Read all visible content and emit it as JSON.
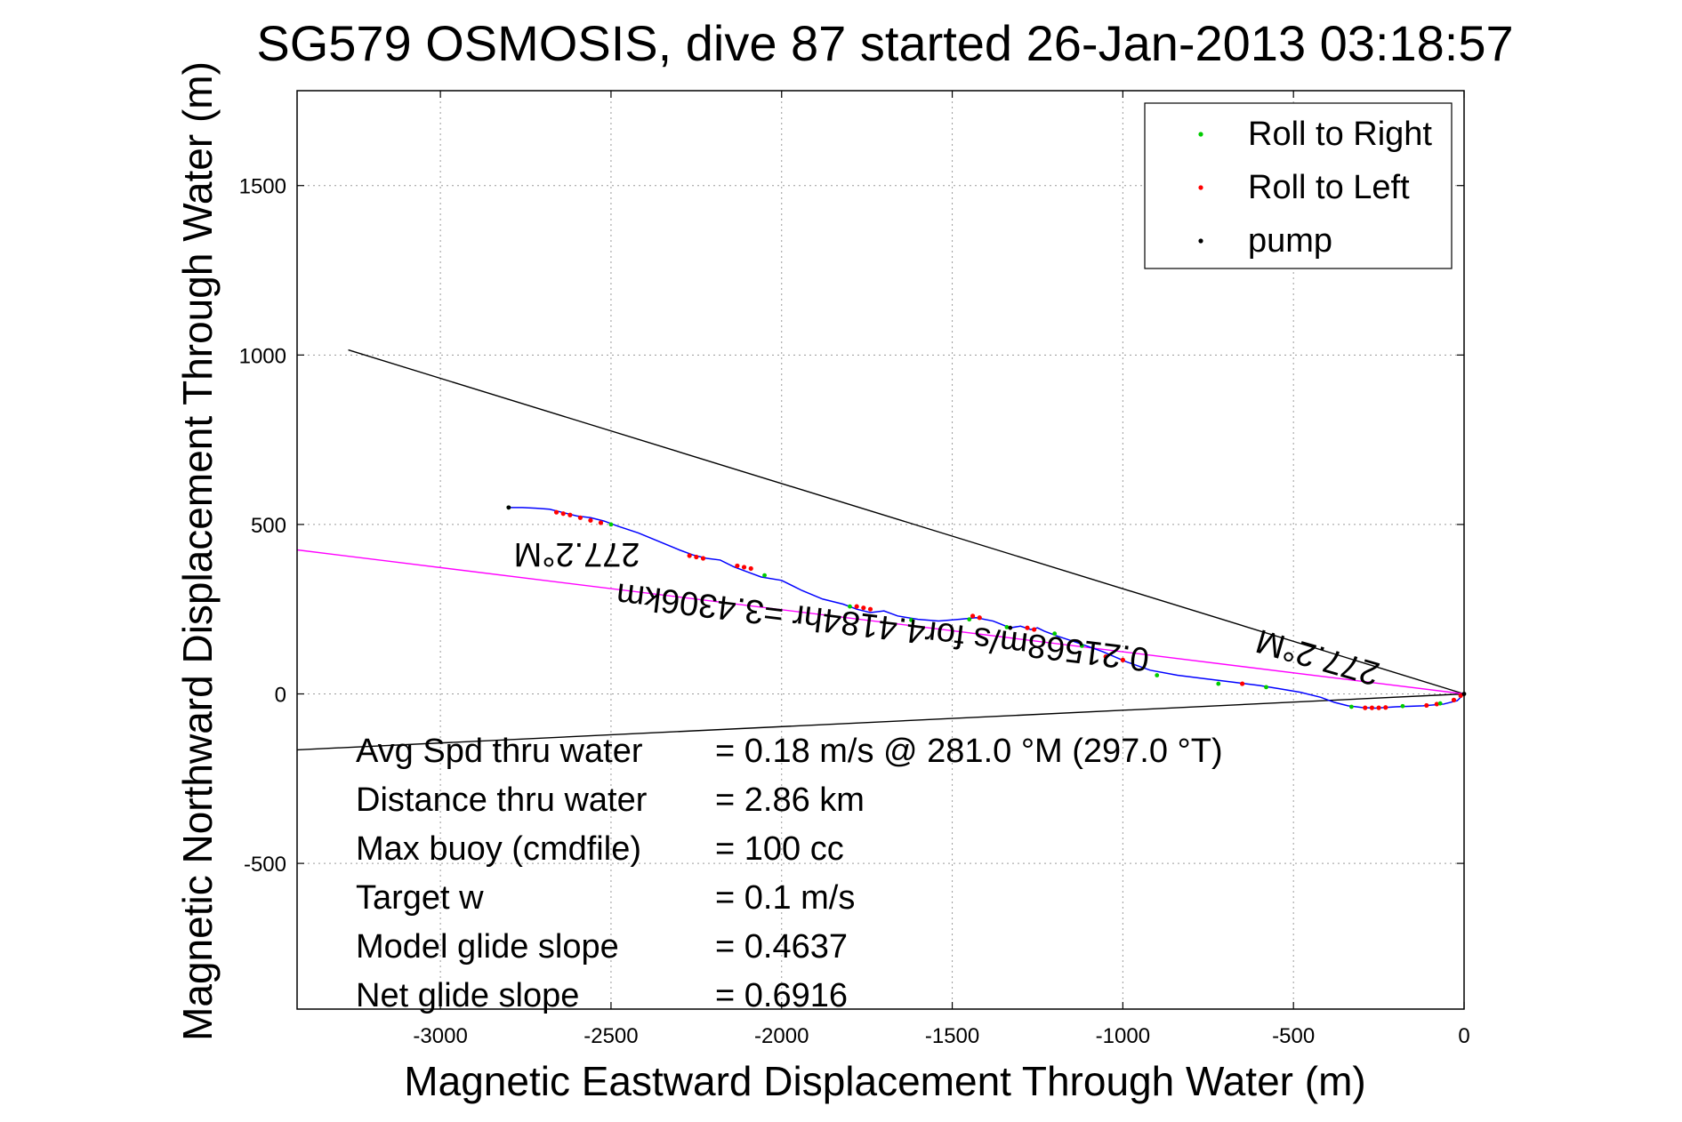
{
  "chart_data": {
    "type": "line",
    "title": "SG579 OSMOSIS, dive 87 started 26-Jan-2013 03:18:57",
    "xlabel": "Magnetic Eastward Displacement Through Water (m)",
    "ylabel": "Magnetic Northward Displacement Through Water (m)",
    "xlim": [
      -3420,
      0
    ],
    "ylim": [
      -930,
      1780
    ],
    "xticks": [
      -3000,
      -2500,
      -2000,
      -1500,
      -1000,
      -500,
      0
    ],
    "yticks": [
      -500,
      0,
      500,
      1000,
      1500
    ],
    "grid": true,
    "legend": {
      "placement": "top-right",
      "entries": [
        {
          "name": "Roll to Right",
          "color": "#00cc00"
        },
        {
          "name": "Roll to Left",
          "color": "#ff0000"
        },
        {
          "name": "pump",
          "color": "#000000"
        }
      ]
    },
    "track": {
      "color": "#0000ff",
      "x": [
        0,
        -20,
        -60,
        -120,
        -200,
        -260,
        -300,
        -340,
        -380,
        -420,
        -480,
        -540,
        -600,
        -680,
        -760,
        -840,
        -920,
        -990,
        -1060,
        -1130,
        -1190,
        -1230,
        -1250,
        -1270,
        -1300,
        -1330,
        -1380,
        -1430,
        -1480,
        -1540,
        -1600,
        -1660,
        -1700,
        -1740,
        -1780,
        -1820,
        -1880,
        -1940,
        -2000,
        -2060,
        -2100,
        -2140,
        -2180,
        -2220,
        -2260,
        -2300,
        -2360,
        -2420,
        -2480,
        -2520,
        -2560,
        -2600,
        -2640,
        -2680,
        -2720,
        -2760,
        -2800
      ],
      "y": [
        0,
        -20,
        -30,
        -35,
        -38,
        -42,
        -40,
        -35,
        -25,
        -10,
        5,
        15,
        25,
        35,
        45,
        55,
        70,
        95,
        125,
        150,
        170,
        185,
        195,
        190,
        200,
        195,
        215,
        225,
        220,
        215,
        220,
        230,
        245,
        240,
        250,
        265,
        280,
        305,
        335,
        345,
        360,
        375,
        395,
        400,
        410,
        425,
        450,
        475,
        495,
        510,
        520,
        525,
        535,
        545,
        548,
        550,
        550
      ]
    },
    "roll_right_x": [
      -70,
      -180,
      -330,
      -580,
      -720,
      -900,
      -1120,
      -1200,
      -1340,
      -1450,
      -1620,
      -1800,
      -2050,
      -2500,
      -2800
    ],
    "roll_right_y": [
      -28,
      -36,
      -38,
      20,
      30,
      55,
      142,
      178,
      197,
      220,
      218,
      258,
      350,
      500,
      550
    ],
    "roll_left_x": [
      -10,
      -30,
      -80,
      -110,
      -230,
      -250,
      -270,
      -290,
      -650,
      -1000,
      -1050,
      -1260,
      -1280,
      -1420,
      -1440,
      -1740,
      -1760,
      -1780,
      -2090,
      -2110,
      -2130,
      -2230,
      -2250,
      -2270,
      -2530,
      -2560,
      -2590,
      -2620,
      -2640,
      -2660
    ],
    "roll_left_y": [
      -5,
      -18,
      -30,
      -34,
      -40,
      -41,
      -41,
      -41,
      30,
      100,
      110,
      190,
      195,
      225,
      230,
      250,
      254,
      258,
      370,
      374,
      378,
      400,
      404,
      408,
      505,
      512,
      520,
      528,
      532,
      536
    ],
    "pump_x": [
      0,
      -1330,
      -2800
    ],
    "pump_y": [
      0,
      195,
      550
    ],
    "lines": [
      {
        "x": [
          0,
          -3420
        ],
        "y": [
          0,
          -165
        ],
        "color": "#000000"
      },
      {
        "x": [
          0,
          -3270
        ],
        "y": [
          0,
          1015
        ],
        "color": "#000000"
      },
      {
        "x": [
          0,
          -3420
        ],
        "y": [
          0,
          425
        ],
        "color": "#ff00ff"
      }
    ],
    "annotations": [
      {
        "text": "277.2°M",
        "x": -2600,
        "y": 445,
        "angle": 180
      },
      {
        "text": "277.2°M",
        "x": -420,
        "y": 140,
        "angle": 196
      },
      {
        "text": "0.21568m/s for4.4184hr =3.4306km",
        "x": -1700,
        "y": 230,
        "angle": 187
      }
    ]
  },
  "stats": [
    {
      "label": "Avg Spd thru water",
      "value": "=  0.18 m/s @ 281.0 °M (297.0 °T)"
    },
    {
      "label": "Distance thru water",
      "value": "=  2.86 km"
    },
    {
      "label": "Max buoy (cmdfile)",
      "value": "= 100 cc"
    },
    {
      "label": "Target w",
      "value": "= 0.1 m/s"
    },
    {
      "label": "Model glide slope",
      "value": "= 0.4637"
    },
    {
      "label": "Net glide slope",
      "value": "= 0.6916"
    }
  ]
}
